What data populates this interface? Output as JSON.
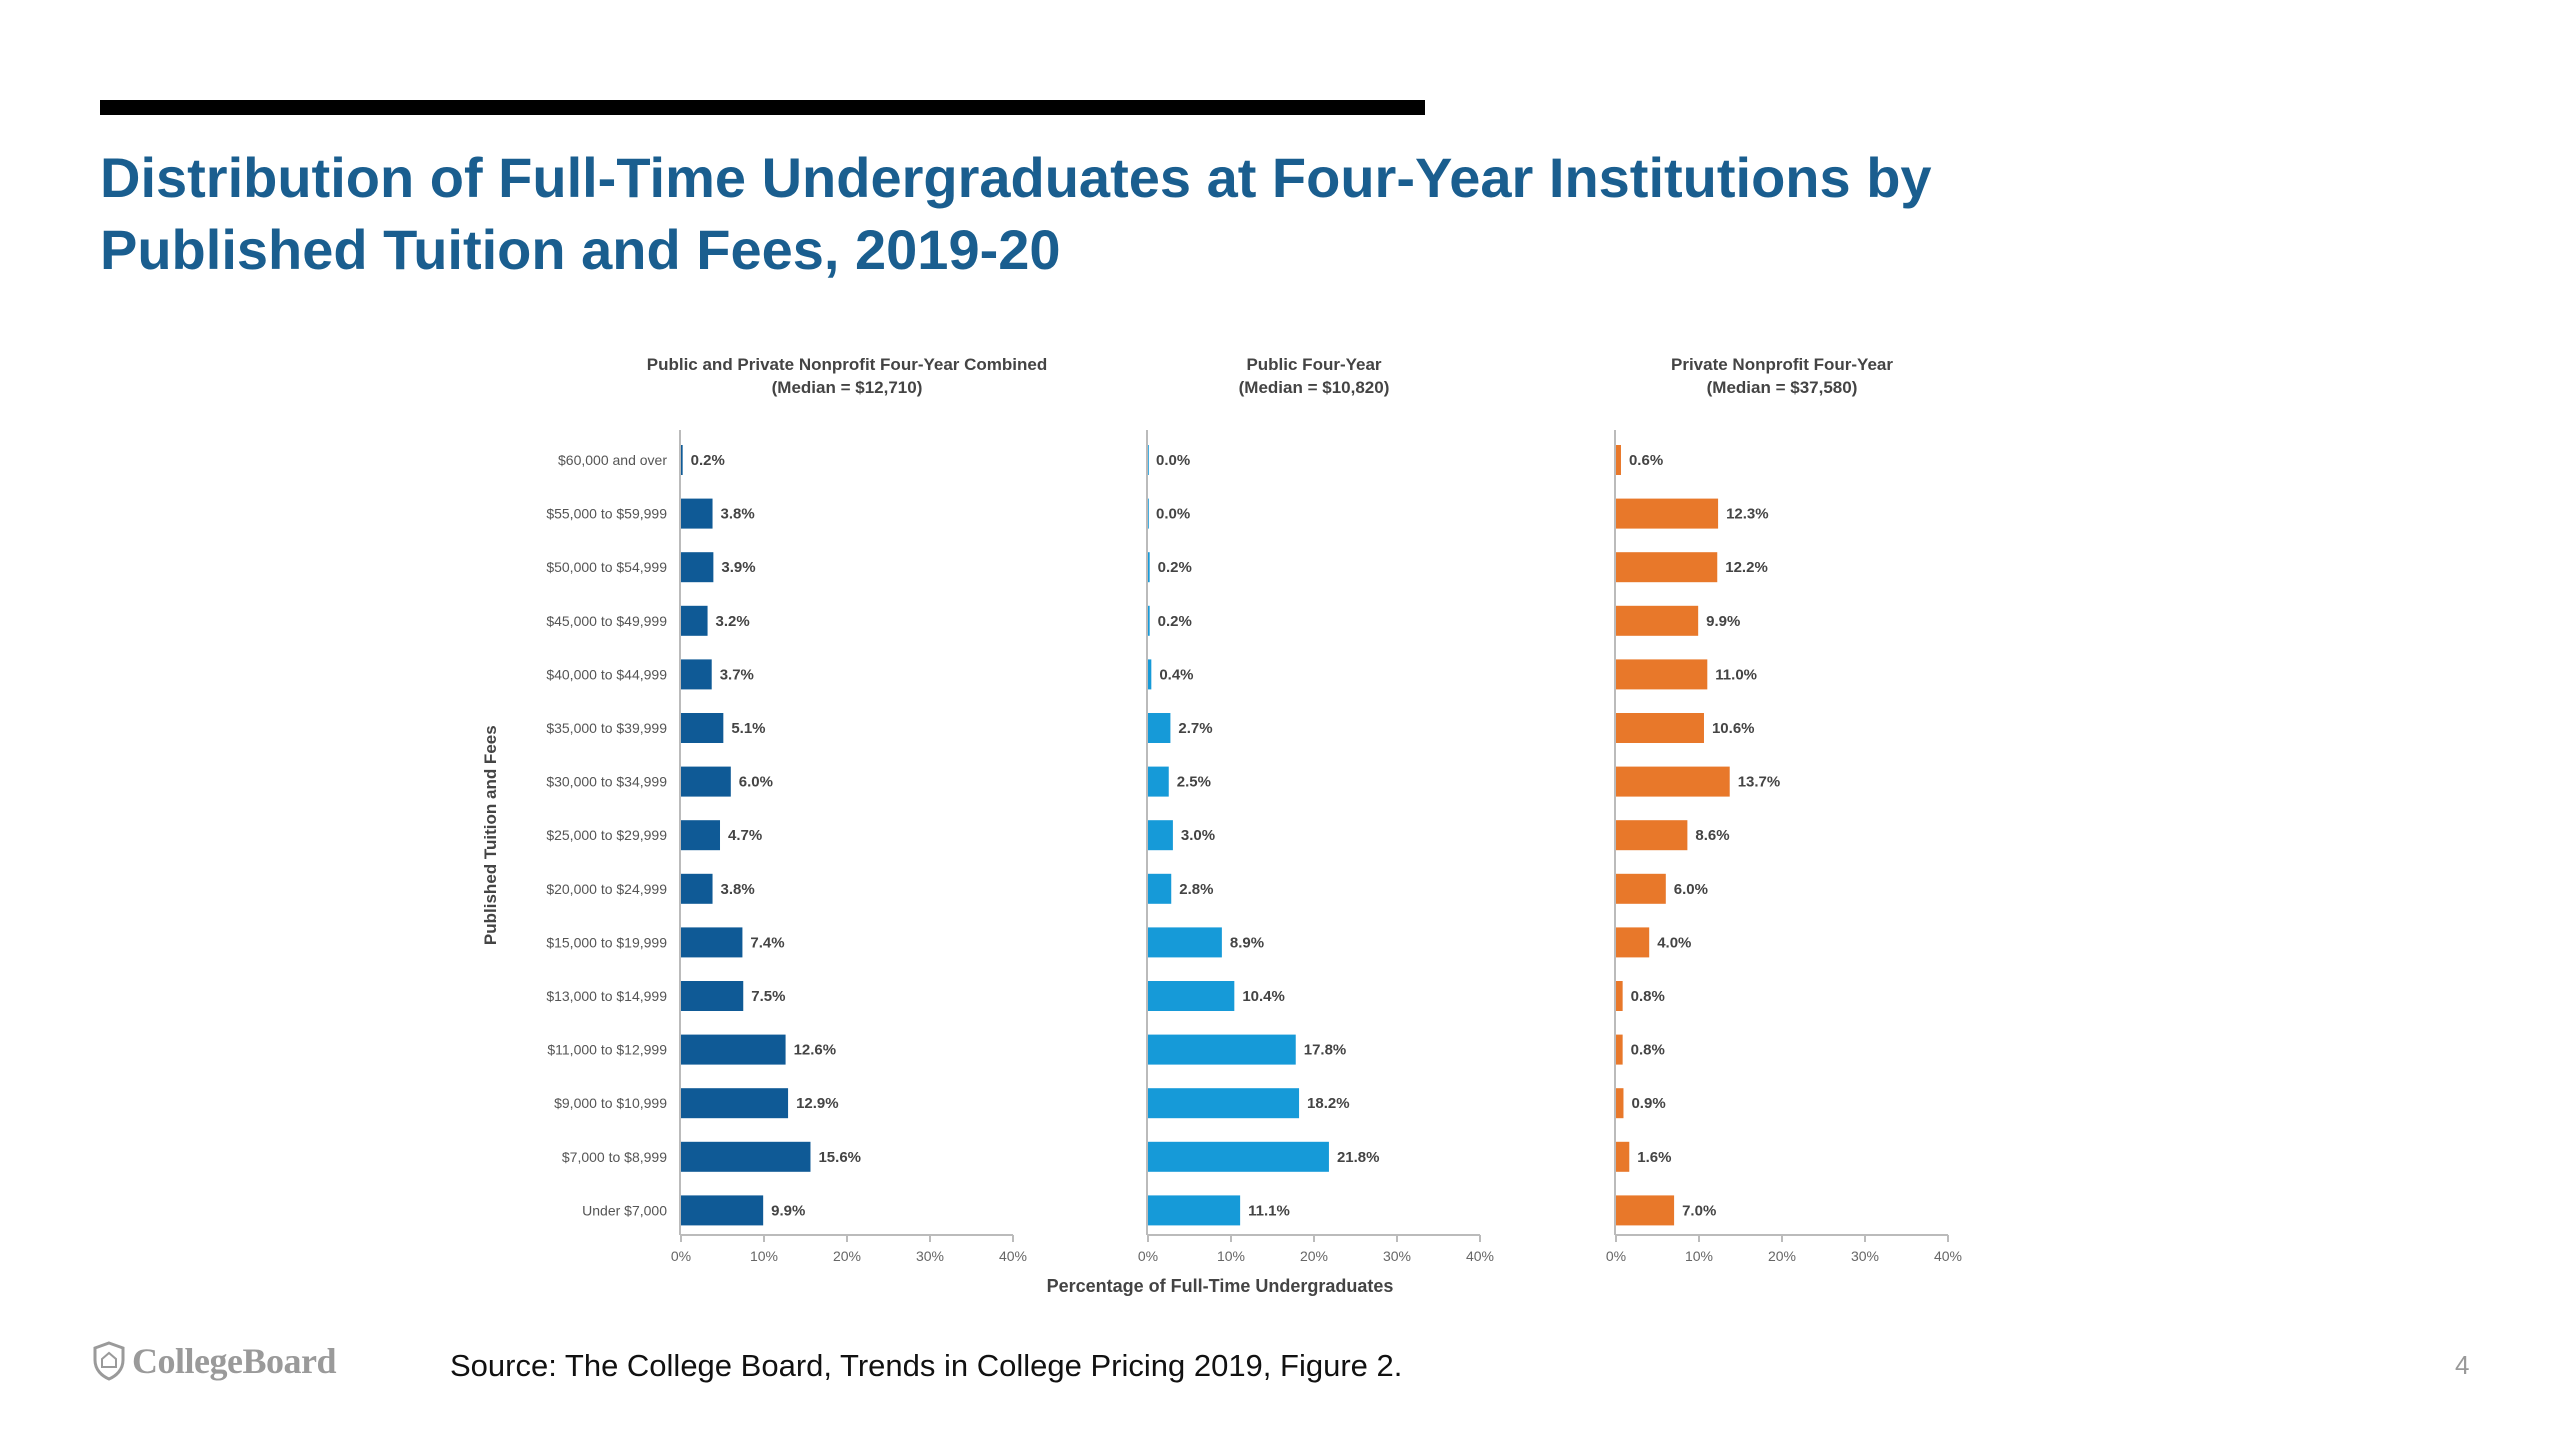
{
  "slide": {
    "title_lines": [
      "Distribution of Full-Time Undergraduates at Four-Year Institutions by",
      "Published Tuition and Fees, 2019-20"
    ],
    "source": "Source: The College Board, Trends in College Pricing 2019, Figure 2.",
    "page_number": "4",
    "logo_text": "CollegeBoard"
  },
  "chart_data": {
    "type": "bar",
    "orientation": "horizontal",
    "ylabel": "Published Tuition and Fees",
    "xlabel": "Percentage of Full-Time Undergraduates",
    "categories": [
      "$60,000 and over",
      "$55,000 to $59,999",
      "$50,000 to $54,999",
      "$45,000 to $49,999",
      "$40,000 to $44,999",
      "$35,000 to $39,999",
      "$30,000 to $34,999",
      "$25,000 to $29,999",
      "$20,000 to $24,999",
      "$15,000 to $19,999",
      "$13,000 to $14,999",
      "$11,000 to $12,999",
      "$9,000 to $10,999",
      "$7,000 to $8,999",
      "Under $7,000"
    ],
    "xlim": [
      0,
      40
    ],
    "xticks": [
      "0%",
      "10%",
      "20%",
      "30%",
      "40%"
    ],
    "grid": false,
    "panels": [
      {
        "title": "Public and Private Nonprofit Four-Year Combined",
        "subtitle": "(Median = $12,710)",
        "color": "#0f5a96",
        "values": [
          0.2,
          3.8,
          3.9,
          3.2,
          3.7,
          5.1,
          6.0,
          4.7,
          3.8,
          7.4,
          7.5,
          12.6,
          12.9,
          15.6,
          9.9
        ],
        "labels": [
          "0.2%",
          "3.8%",
          "3.9%",
          "3.2%",
          "3.7%",
          "5.1%",
          "6.0%",
          "4.7%",
          "3.8%",
          "7.4%",
          "7.5%",
          "12.6%",
          "12.9%",
          "15.6%",
          "9.9%"
        ]
      },
      {
        "title": "Public Four-Year",
        "subtitle": "(Median = $10,820)",
        "color": "#169ad8",
        "values": [
          0.0,
          0.0,
          0.2,
          0.2,
          0.4,
          2.7,
          2.5,
          3.0,
          2.8,
          8.9,
          10.4,
          17.8,
          18.2,
          21.8,
          11.1
        ],
        "labels": [
          "0.0%",
          "0.0%",
          "0.2%",
          "0.2%",
          "0.4%",
          "2.7%",
          "2.5%",
          "3.0%",
          "2.8%",
          "8.9%",
          "10.4%",
          "17.8%",
          "18.2%",
          "21.8%",
          "11.1%"
        ]
      },
      {
        "title": "Private Nonprofit Four-Year",
        "subtitle": "(Median = $37,580)",
        "color": "#e8782a",
        "values": [
          0.6,
          12.3,
          12.2,
          9.9,
          11.0,
          10.6,
          13.7,
          8.6,
          6.0,
          4.0,
          0.8,
          0.8,
          0.9,
          1.6,
          7.0
        ],
        "labels": [
          "0.6%",
          "12.3%",
          "12.2%",
          "9.9%",
          "11.0%",
          "10.6%",
          "13.7%",
          "8.6%",
          "6.0%",
          "4.0%",
          "0.8%",
          "0.8%",
          "0.9%",
          "1.6%",
          "7.0%"
        ]
      }
    ]
  }
}
